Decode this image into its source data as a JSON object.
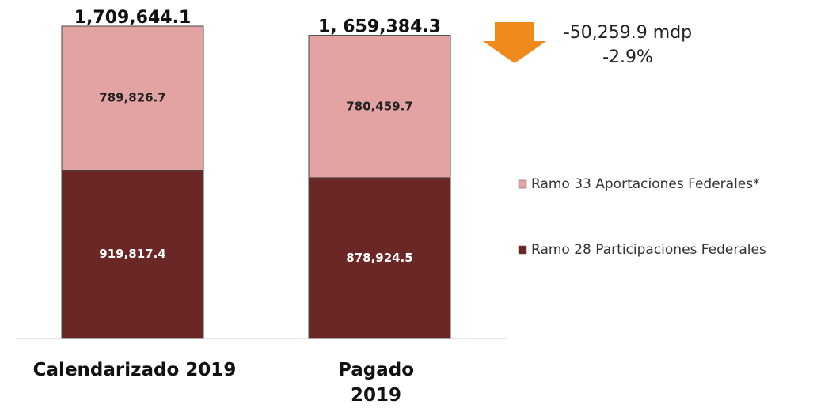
{
  "chart_data": {
    "type": "stacked_bar",
    "categories": [
      "Calendarizado 2019",
      "Pagado 2019"
    ],
    "series": [
      {
        "name": "Ramo 28 Participaciones Federales",
        "color": "#6b2626",
        "values": [
          919817.4,
          878924.5
        ],
        "value_labels": [
          "919,817.4",
          "878,924.5"
        ]
      },
      {
        "name": "Ramo 33 Aportaciones Federales*",
        "color": "#e3a3a3",
        "values": [
          789826.7,
          780459.7
        ],
        "value_labels": [
          "789,826.7",
          "780,459.7"
        ]
      }
    ],
    "totals": [
      1709644.1,
      1659384.3
    ],
    "total_labels": [
      "1,709,644.1",
      "1, 659,384.3"
    ],
    "change": {
      "value": -50259.9,
      "label": "-50,259.9 mdp"
    },
    "change_pct": {
      "value": -2.9,
      "label": "-2.9%"
    },
    "arrow_color": "#f08a1c",
    "ylim": [
      0,
      1709644.1
    ]
  }
}
